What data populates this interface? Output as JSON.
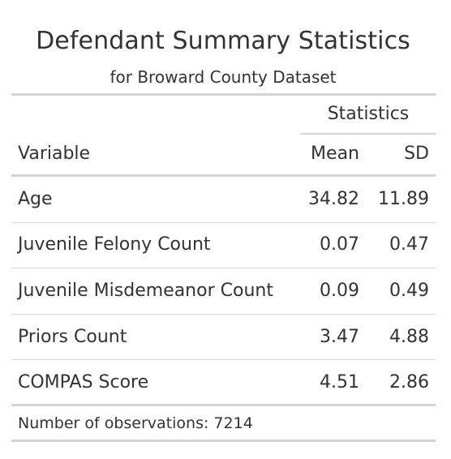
{
  "title": "Defendant Summary Statistics",
  "subtitle": "for Broward County Dataset",
  "spanner": "Statistics",
  "columns": {
    "variable": "Variable",
    "mean": "Mean",
    "sd": "SD"
  },
  "rows": [
    {
      "variable": "Age",
      "mean": "34.82",
      "sd": "11.89"
    },
    {
      "variable": "Juvenile Felony Count",
      "mean": "0.07",
      "sd": "0.47"
    },
    {
      "variable": "Juvenile Misdemeanor Count",
      "mean": "0.09",
      "sd": "0.49"
    },
    {
      "variable": "Priors Count",
      "mean": "3.47",
      "sd": "4.88"
    },
    {
      "variable": "COMPAS Score",
      "mean": "4.51",
      "sd": "2.86"
    }
  ],
  "footnote": "Number of observations: 7214",
  "colors": {
    "text": "#333333",
    "rule": "#d3d3d3"
  }
}
